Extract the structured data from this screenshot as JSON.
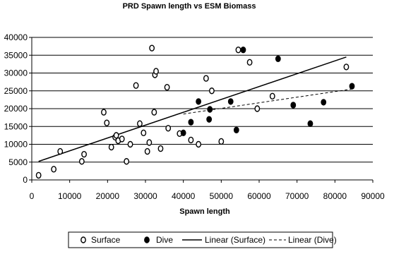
{
  "chart_data": {
    "type": "scatter",
    "title": "PRD Spawn length vs ESM Biomass",
    "xlabel": "Spawn length",
    "ylabel": "",
    "xlim": [
      0,
      90000
    ],
    "ylim": [
      0,
      40000
    ],
    "xticks": [
      "0",
      "10000",
      "20000",
      "30000",
      "40000",
      "50000",
      "60000",
      "70000",
      "80000",
      "90000"
    ],
    "yticks": [
      "0",
      "5000",
      "10000",
      "15000",
      "20000",
      "25000",
      "30000",
      "35000",
      "40000"
    ],
    "grid": "horizontal",
    "legend_position": "bottom",
    "series": [
      {
        "name": "Surface",
        "marker": "open-circle",
        "points": [
          [
            1800,
            1300
          ],
          [
            5800,
            3000
          ],
          [
            7500,
            8000
          ],
          [
            13200,
            5200
          ],
          [
            13800,
            7200
          ],
          [
            19000,
            19000
          ],
          [
            19800,
            16000
          ],
          [
            21000,
            9200
          ],
          [
            22000,
            12000
          ],
          [
            22300,
            12500
          ],
          [
            22800,
            11000
          ],
          [
            23800,
            11500
          ],
          [
            25000,
            5200
          ],
          [
            26000,
            10000
          ],
          [
            27500,
            26500
          ],
          [
            28500,
            15800
          ],
          [
            29500,
            13200
          ],
          [
            30500,
            8000
          ],
          [
            31000,
            10500
          ],
          [
            31700,
            37000
          ],
          [
            32300,
            19000
          ],
          [
            32500,
            29500
          ],
          [
            32800,
            30500
          ],
          [
            34000,
            8800
          ],
          [
            35700,
            26000
          ],
          [
            36000,
            14500
          ],
          [
            39000,
            13000
          ],
          [
            42000,
            11200
          ],
          [
            44000,
            10000
          ],
          [
            46000,
            28500
          ],
          [
            47500,
            25000
          ],
          [
            50000,
            10800
          ],
          [
            54500,
            36500
          ],
          [
            57500,
            33000
          ],
          [
            59500,
            20000
          ],
          [
            63500,
            23500
          ],
          [
            83000,
            31700
          ]
        ]
      },
      {
        "name": "Dive",
        "marker": "filled-circle",
        "points": [
          [
            40000,
            13200
          ],
          [
            42000,
            16200
          ],
          [
            44000,
            22000
          ],
          [
            46800,
            17000
          ],
          [
            47000,
            19800
          ],
          [
            52500,
            22000
          ],
          [
            54000,
            14000
          ],
          [
            55800,
            36500
          ],
          [
            65000,
            34000
          ],
          [
            69000,
            21000
          ],
          [
            73500,
            15800
          ],
          [
            77000,
            21800
          ],
          [
            84500,
            26300
          ]
        ]
      },
      {
        "name": "Linear (Surface)",
        "style": "solid-line",
        "points": [
          [
            1800,
            5200
          ],
          [
            83000,
            34500
          ]
        ]
      },
      {
        "name": "Linear (Dive)",
        "style": "dashed-line",
        "points": [
          [
            40000,
            18500
          ],
          [
            84500,
            25500
          ]
        ]
      }
    ]
  }
}
